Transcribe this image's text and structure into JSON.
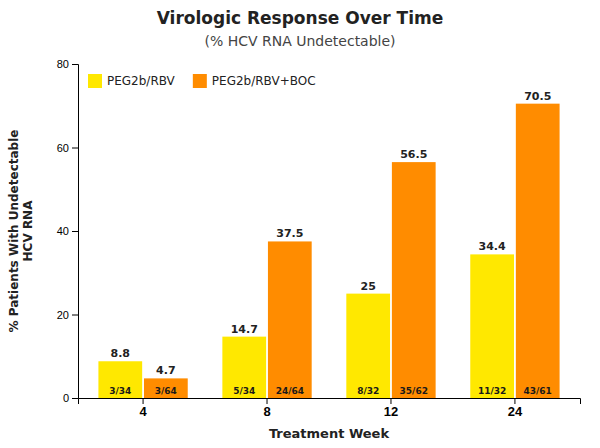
{
  "chart_data": {
    "type": "bar",
    "title": "Virologic Response Over Time",
    "subtitle": "(% HCV RNA Undetectable)",
    "xlabel": "Treatment Week",
    "ylabel": "% Patients With Undetectable\nHCV RNA",
    "categories": [
      "4",
      "8",
      "12",
      "24"
    ],
    "series": [
      {
        "name": "PEG2b/RBV",
        "color": "#FFE800",
        "values": [
          8.8,
          14.7,
          25,
          34.4
        ],
        "annotations": [
          "3/34",
          "5/34",
          "8/32",
          "11/32"
        ]
      },
      {
        "name": "PEG2b/RBV+BOC",
        "color": "#FF8C00",
        "values": [
          4.7,
          37.5,
          56.5,
          70.5
        ],
        "annotations": [
          "3/64",
          "24/64",
          "35/62",
          "43/61"
        ]
      }
    ],
    "ylim": [
      0,
      80
    ],
    "yticks": [
      0,
      20,
      40,
      60,
      80
    ],
    "grid": false,
    "legend": "upper left",
    "data_labels": true
  }
}
